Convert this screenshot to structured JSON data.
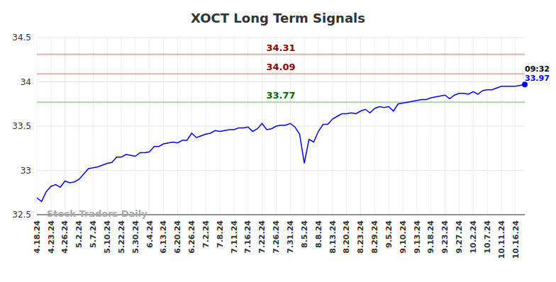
{
  "chart_data": {
    "type": "line",
    "title": "XOCT Long Term Signals",
    "categories": [
      "4.18.24",
      null,
      null,
      "4.23.24",
      null,
      null,
      "4.26.24",
      null,
      null,
      "5.2.24",
      null,
      null,
      "5.7.24",
      null,
      null,
      "5.10.24",
      null,
      null,
      "5.22.24",
      null,
      null,
      "5.30.24",
      null,
      null,
      "6.4.24",
      null,
      null,
      "6.13.24",
      null,
      null,
      "6.20.24",
      null,
      null,
      "6.26.24",
      null,
      null,
      "7.2.24",
      null,
      null,
      "7.8.24",
      null,
      null,
      "7.11.24",
      null,
      null,
      "7.16.24",
      null,
      null,
      "7.22.24",
      null,
      null,
      "7.26.24",
      null,
      null,
      "7.31.24",
      null,
      null,
      "8.5.24",
      null,
      null,
      "8.8.24",
      null,
      null,
      "8.13.24",
      null,
      null,
      "8.20.24",
      null,
      null,
      "8.23.24",
      null,
      null,
      "8.29.24",
      null,
      null,
      "9.5.24",
      null,
      null,
      "9.10.24",
      null,
      null,
      "9.13.24",
      null,
      null,
      "9.18.24",
      null,
      null,
      "9.23.24",
      null,
      null,
      "9.27.24",
      null,
      null,
      "10.2.24",
      null,
      null,
      "10.7.24",
      null,
      null,
      "10.11.24",
      null,
      null,
      "10.16.24",
      null,
      null
    ],
    "values": [
      32.69,
      32.65,
      32.76,
      32.82,
      32.84,
      32.81,
      32.88,
      32.86,
      32.87,
      32.9,
      32.96,
      33.02,
      33.03,
      33.04,
      33.06,
      33.08,
      33.09,
      33.15,
      33.15,
      33.18,
      33.17,
      33.16,
      33.2,
      33.2,
      33.21,
      33.27,
      33.27,
      33.3,
      33.31,
      33.32,
      33.31,
      33.34,
      33.34,
      33.42,
      33.37,
      33.39,
      33.41,
      33.42,
      33.45,
      33.44,
      33.45,
      33.46,
      33.46,
      33.48,
      33.48,
      33.49,
      33.44,
      33.47,
      33.53,
      33.46,
      33.47,
      33.5,
      33.51,
      33.51,
      33.53,
      33.49,
      33.41,
      33.08,
      33.35,
      33.32,
      33.44,
      33.52,
      33.52,
      33.58,
      33.61,
      33.64,
      33.64,
      33.65,
      33.64,
      33.67,
      33.69,
      33.65,
      33.7,
      33.72,
      33.71,
      33.72,
      33.67,
      33.75,
      33.76,
      33.77,
      33.78,
      33.79,
      33.8,
      33.8,
      33.82,
      33.83,
      33.84,
      33.85,
      33.81,
      33.85,
      33.87,
      33.87,
      33.86,
      33.89,
      33.86,
      33.9,
      33.91,
      33.91,
      33.93,
      33.95,
      33.95,
      33.95,
      33.95,
      33.96,
      33.97
    ],
    "color": "#0000ff",
    "ylim": [
      32.5,
      34.5
    ],
    "yticks": [
      32.5,
      33,
      33.5,
      34,
      34.5
    ],
    "grid": true,
    "annotations": [
      {
        "value": 34.31,
        "label": "34.31",
        "color": "#8b0000"
      },
      {
        "value": 34.09,
        "label": "34.09",
        "color": "#8b0000"
      },
      {
        "value": 33.77,
        "label": "33.77",
        "color": "#006400"
      }
    ],
    "last_point": {
      "time_label": "09:32",
      "value_label": "33.97"
    },
    "watermark": "Stock Traders Daily"
  }
}
